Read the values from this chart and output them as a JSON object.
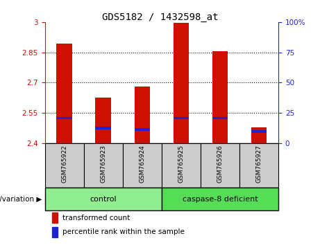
{
  "title": "GDS5182 / 1432598_at",
  "samples": [
    "GSM765922",
    "GSM765923",
    "GSM765924",
    "GSM765925",
    "GSM765926",
    "GSM765927"
  ],
  "groups": [
    {
      "name": "control",
      "indices": [
        0,
        1,
        2
      ],
      "color": "#90EE90"
    },
    {
      "name": "caspase-8 deficient",
      "indices": [
        3,
        4,
        5
      ],
      "color": "#55DD55"
    }
  ],
  "bar_bottom": 2.4,
  "transformed_counts": [
    2.895,
    2.625,
    2.68,
    2.995,
    2.855,
    2.48
  ],
  "percentile_values": [
    2.525,
    2.475,
    2.468,
    2.525,
    2.525,
    2.458
  ],
  "ylim": [
    2.4,
    3.0
  ],
  "yticks_left": [
    2.4,
    2.55,
    2.7,
    2.85,
    3.0
  ],
  "yticks_right": [
    0,
    25,
    50,
    75,
    100
  ],
  "ytick_labels_left": [
    "2.4",
    "2.55",
    "2.7",
    "2.85",
    "3"
  ],
  "ytick_labels_right": [
    "0",
    "25",
    "50",
    "75",
    "100%"
  ],
  "grid_values": [
    2.55,
    2.7,
    2.85
  ],
  "bar_color": "#CC1100",
  "percentile_color": "#2222CC",
  "bar_width": 0.4,
  "label_transformed": "transformed count",
  "label_percentile": "percentile rank within the sample",
  "genotype_label": "genotype/variation ▶",
  "left_tick_color": "#CC1100",
  "right_tick_color": "#2222CC",
  "sample_box_color": "#CCCCCC",
  "plot_bg_color": "#FFFFFF"
}
